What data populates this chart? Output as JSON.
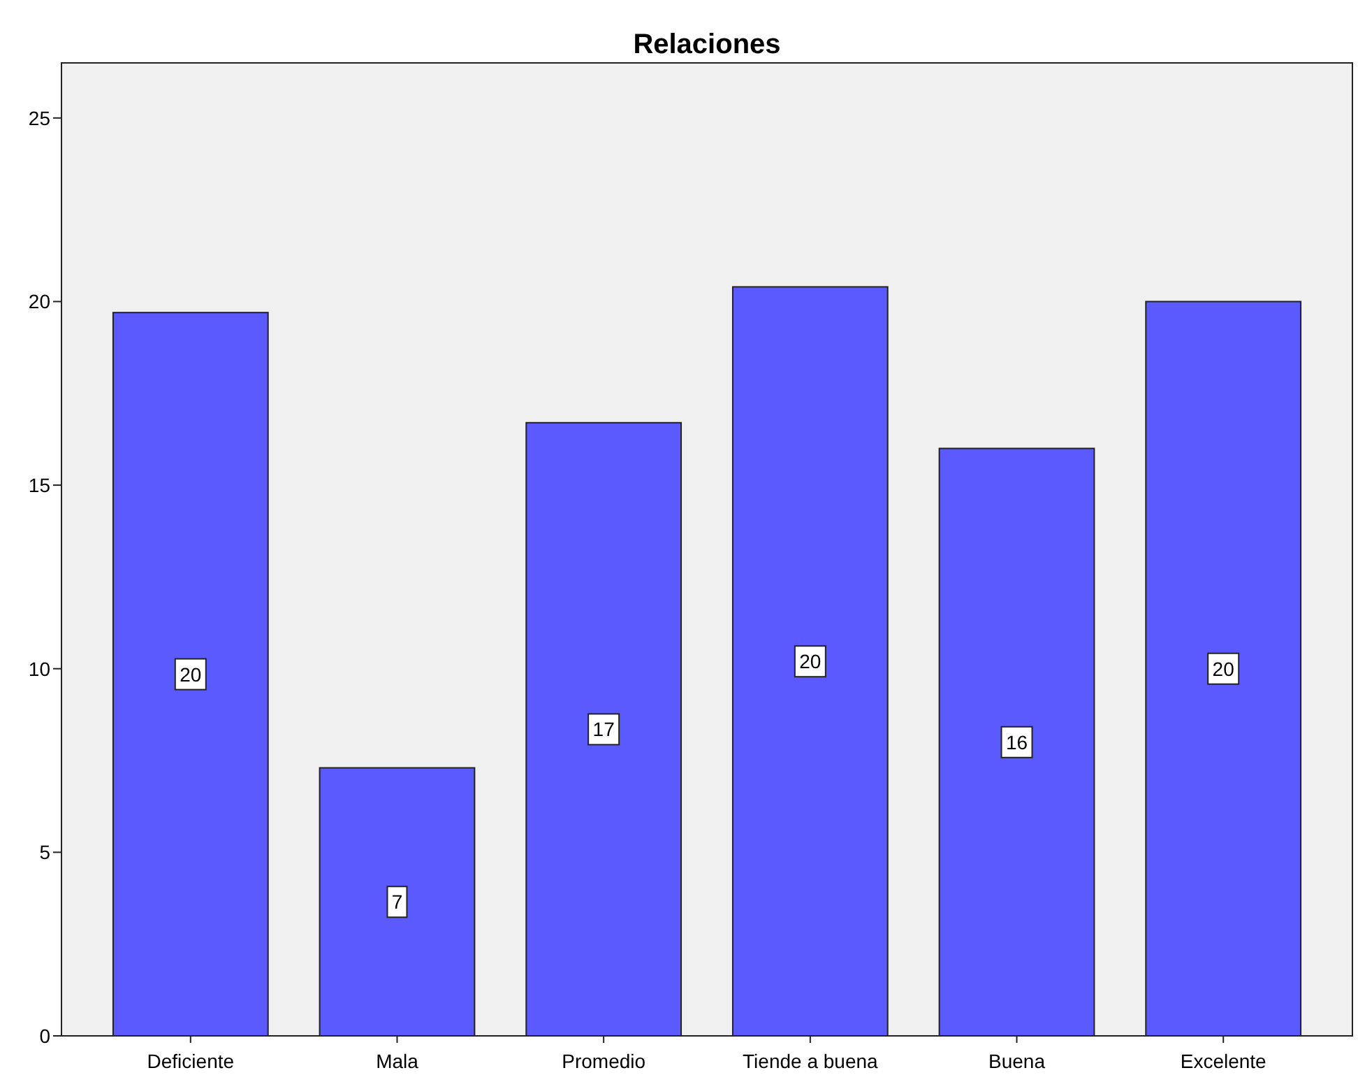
{
  "chart_data": {
    "type": "bar",
    "title": "Relaciones",
    "categories": [
      "Deficiente",
      "Mala",
      "Promedio",
      "Tiende a buena",
      "Buena",
      "Excelente"
    ],
    "values": [
      19.7,
      7.3,
      16.7,
      20.4,
      16.0,
      20.0
    ],
    "value_labels": [
      "20",
      "7",
      "17",
      "20",
      "16",
      "20"
    ],
    "color": "#5a5aff",
    "ylim": [
      0,
      26.5
    ],
    "yticks": [
      0,
      5,
      10,
      15,
      20,
      25
    ],
    "grid": false
  }
}
